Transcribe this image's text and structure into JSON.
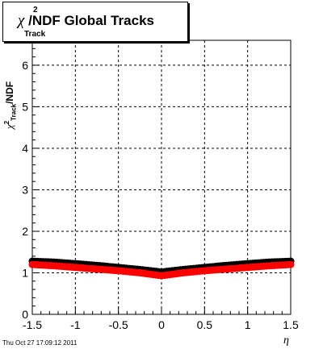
{
  "chart_data": {
    "type": "scatter",
    "title": "/NDF  Global Tracks",
    "title_chi": "χ",
    "title_sup": "2",
    "title_sub": "Track",
    "ylabel": "/NDF",
    "ylabel_chi": "χ",
    "ylabel_sup": "2",
    "ylabel_sub": "Track",
    "xlabel": "η",
    "xlim": [
      -1.5,
      1.5
    ],
    "ylim": [
      0,
      6.6
    ],
    "x_ticks": [
      "-1.5",
      "-1",
      "-0.5",
      "0",
      "0.5",
      "1",
      "1.5"
    ],
    "x_tick_values": [
      -1.5,
      -1,
      -0.5,
      0,
      0.5,
      1,
      1.5
    ],
    "y_ticks": [
      "0",
      "1",
      "2",
      "3",
      "4",
      "5",
      "6"
    ],
    "y_tick_values": [
      0,
      1,
      2,
      3,
      4,
      5,
      6
    ],
    "grid": true,
    "series": [
      {
        "color": "#000000",
        "x": [
          -1.5,
          -1.25,
          -1.0,
          -0.75,
          -0.5,
          -0.25,
          0.0,
          0.25,
          0.5,
          0.75,
          1.0,
          1.25,
          1.5
        ],
        "y": [
          1.28,
          1.26,
          1.22,
          1.18,
          1.13,
          1.08,
          1.02,
          1.08,
          1.13,
          1.18,
          1.22,
          1.26,
          1.28
        ]
      },
      {
        "color": "#ff0000",
        "x": [
          -1.5,
          -1.25,
          -1.0,
          -0.75,
          -0.5,
          -0.25,
          0.0,
          0.25,
          0.5,
          0.75,
          1.0,
          1.25,
          1.5
        ],
        "y": [
          1.2,
          1.17,
          1.13,
          1.09,
          1.05,
          1.0,
          0.93,
          1.0,
          1.05,
          1.09,
          1.13,
          1.17,
          1.2
        ]
      }
    ]
  },
  "footer": {
    "timestamp": "Thu Oct 27 17:09:12 2011"
  }
}
